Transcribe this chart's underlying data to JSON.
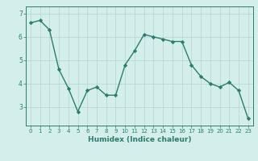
{
  "x": [
    0,
    1,
    2,
    3,
    4,
    5,
    6,
    7,
    8,
    9,
    10,
    11,
    12,
    13,
    14,
    15,
    16,
    17,
    18,
    19,
    20,
    21,
    22,
    23
  ],
  "y": [
    6.6,
    6.7,
    6.3,
    4.6,
    3.8,
    2.8,
    3.7,
    3.85,
    3.5,
    3.5,
    4.8,
    5.4,
    6.1,
    6.0,
    5.9,
    5.8,
    5.8,
    4.8,
    4.3,
    4.0,
    3.85,
    4.05,
    3.7,
    2.5
  ],
  "line_color": "#2a7d6e",
  "marker": "D",
  "markersize": 2.2,
  "linewidth": 1.0,
  "bg_color": "#d4eeec",
  "grid_color": "#b8d8d6",
  "xlabel": "Humidex (Indice chaleur)",
  "xlabel_fontsize": 6.5,
  "tick_color": "#2a7d6e",
  "ylim": [
    2.2,
    7.3
  ],
  "yticks": [
    3,
    4,
    5,
    6,
    7
  ],
  "xticks": [
    0,
    1,
    2,
    3,
    4,
    5,
    6,
    7,
    8,
    9,
    10,
    11,
    12,
    13,
    14,
    15,
    16,
    17,
    18,
    19,
    20,
    21,
    22,
    23
  ],
  "tick_fontsize": 5.5,
  "xtick_fontsize": 5.0
}
